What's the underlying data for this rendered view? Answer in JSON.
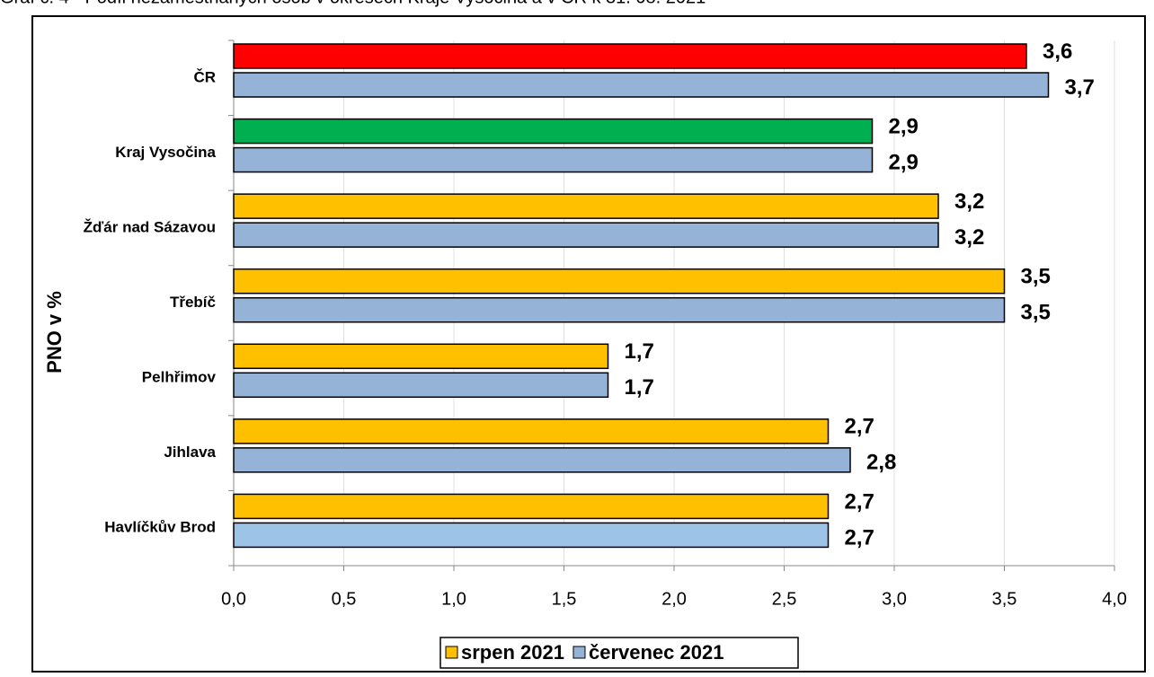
{
  "chart_data": {
    "type": "bar",
    "orientation": "horizontal",
    "title": "Graf č. 4 - Podíl nezaměstnaných osob v okresech Kraje Vysočina a v ČR k 31. 08. 2021",
    "ylabel": "PNO v %",
    "categories": [
      "ČR",
      "Kraj Vysočina",
      "Žďár nad Sázavou",
      "Třebíč",
      "Pelhřimov",
      "Jihlava",
      "Havlíčkův Brod"
    ],
    "series": [
      {
        "name": "srpen 2021",
        "color": "#ffc000",
        "colors": [
          "#ff0000",
          "#00b050",
          "#ffc000",
          "#ffc000",
          "#ffc000",
          "#ffc000",
          "#ffc000"
        ],
        "values": [
          3.6,
          2.9,
          3.2,
          3.5,
          1.7,
          2.7,
          2.7
        ],
        "value_labels": [
          "3,6",
          "2,9",
          "3,2",
          "3,5",
          "1,7",
          "2,7",
          "2,7"
        ]
      },
      {
        "name": "červenec 2021",
        "color": "#95b3d7",
        "colors": [
          "#95b3d7",
          "#95b3d7",
          "#95b3d7",
          "#95b3d7",
          "#95b3d7",
          "#95b3d7",
          "#9dc3e6"
        ],
        "values": [
          3.7,
          2.9,
          3.2,
          3.5,
          1.7,
          2.8,
          2.7
        ],
        "value_labels": [
          "3,7",
          "2,9",
          "3,2",
          "3,5",
          "1,7",
          "2,8",
          "2,7"
        ]
      }
    ],
    "xlim": [
      0,
      4
    ],
    "xticks": [
      {
        "value": 0,
        "label": "0,0"
      },
      {
        "value": 0.5,
        "label": "0,5"
      },
      {
        "value": 1,
        "label": "1,0"
      },
      {
        "value": 1.5,
        "label": "1,5"
      },
      {
        "value": 2,
        "label": "2,0"
      },
      {
        "value": 2.5,
        "label": "2,5"
      },
      {
        "value": 3,
        "label": "3,0"
      },
      {
        "value": 3.5,
        "label": "3,5"
      },
      {
        "value": 4,
        "label": "4,0"
      }
    ],
    "grid": true,
    "legend": "bottom"
  }
}
